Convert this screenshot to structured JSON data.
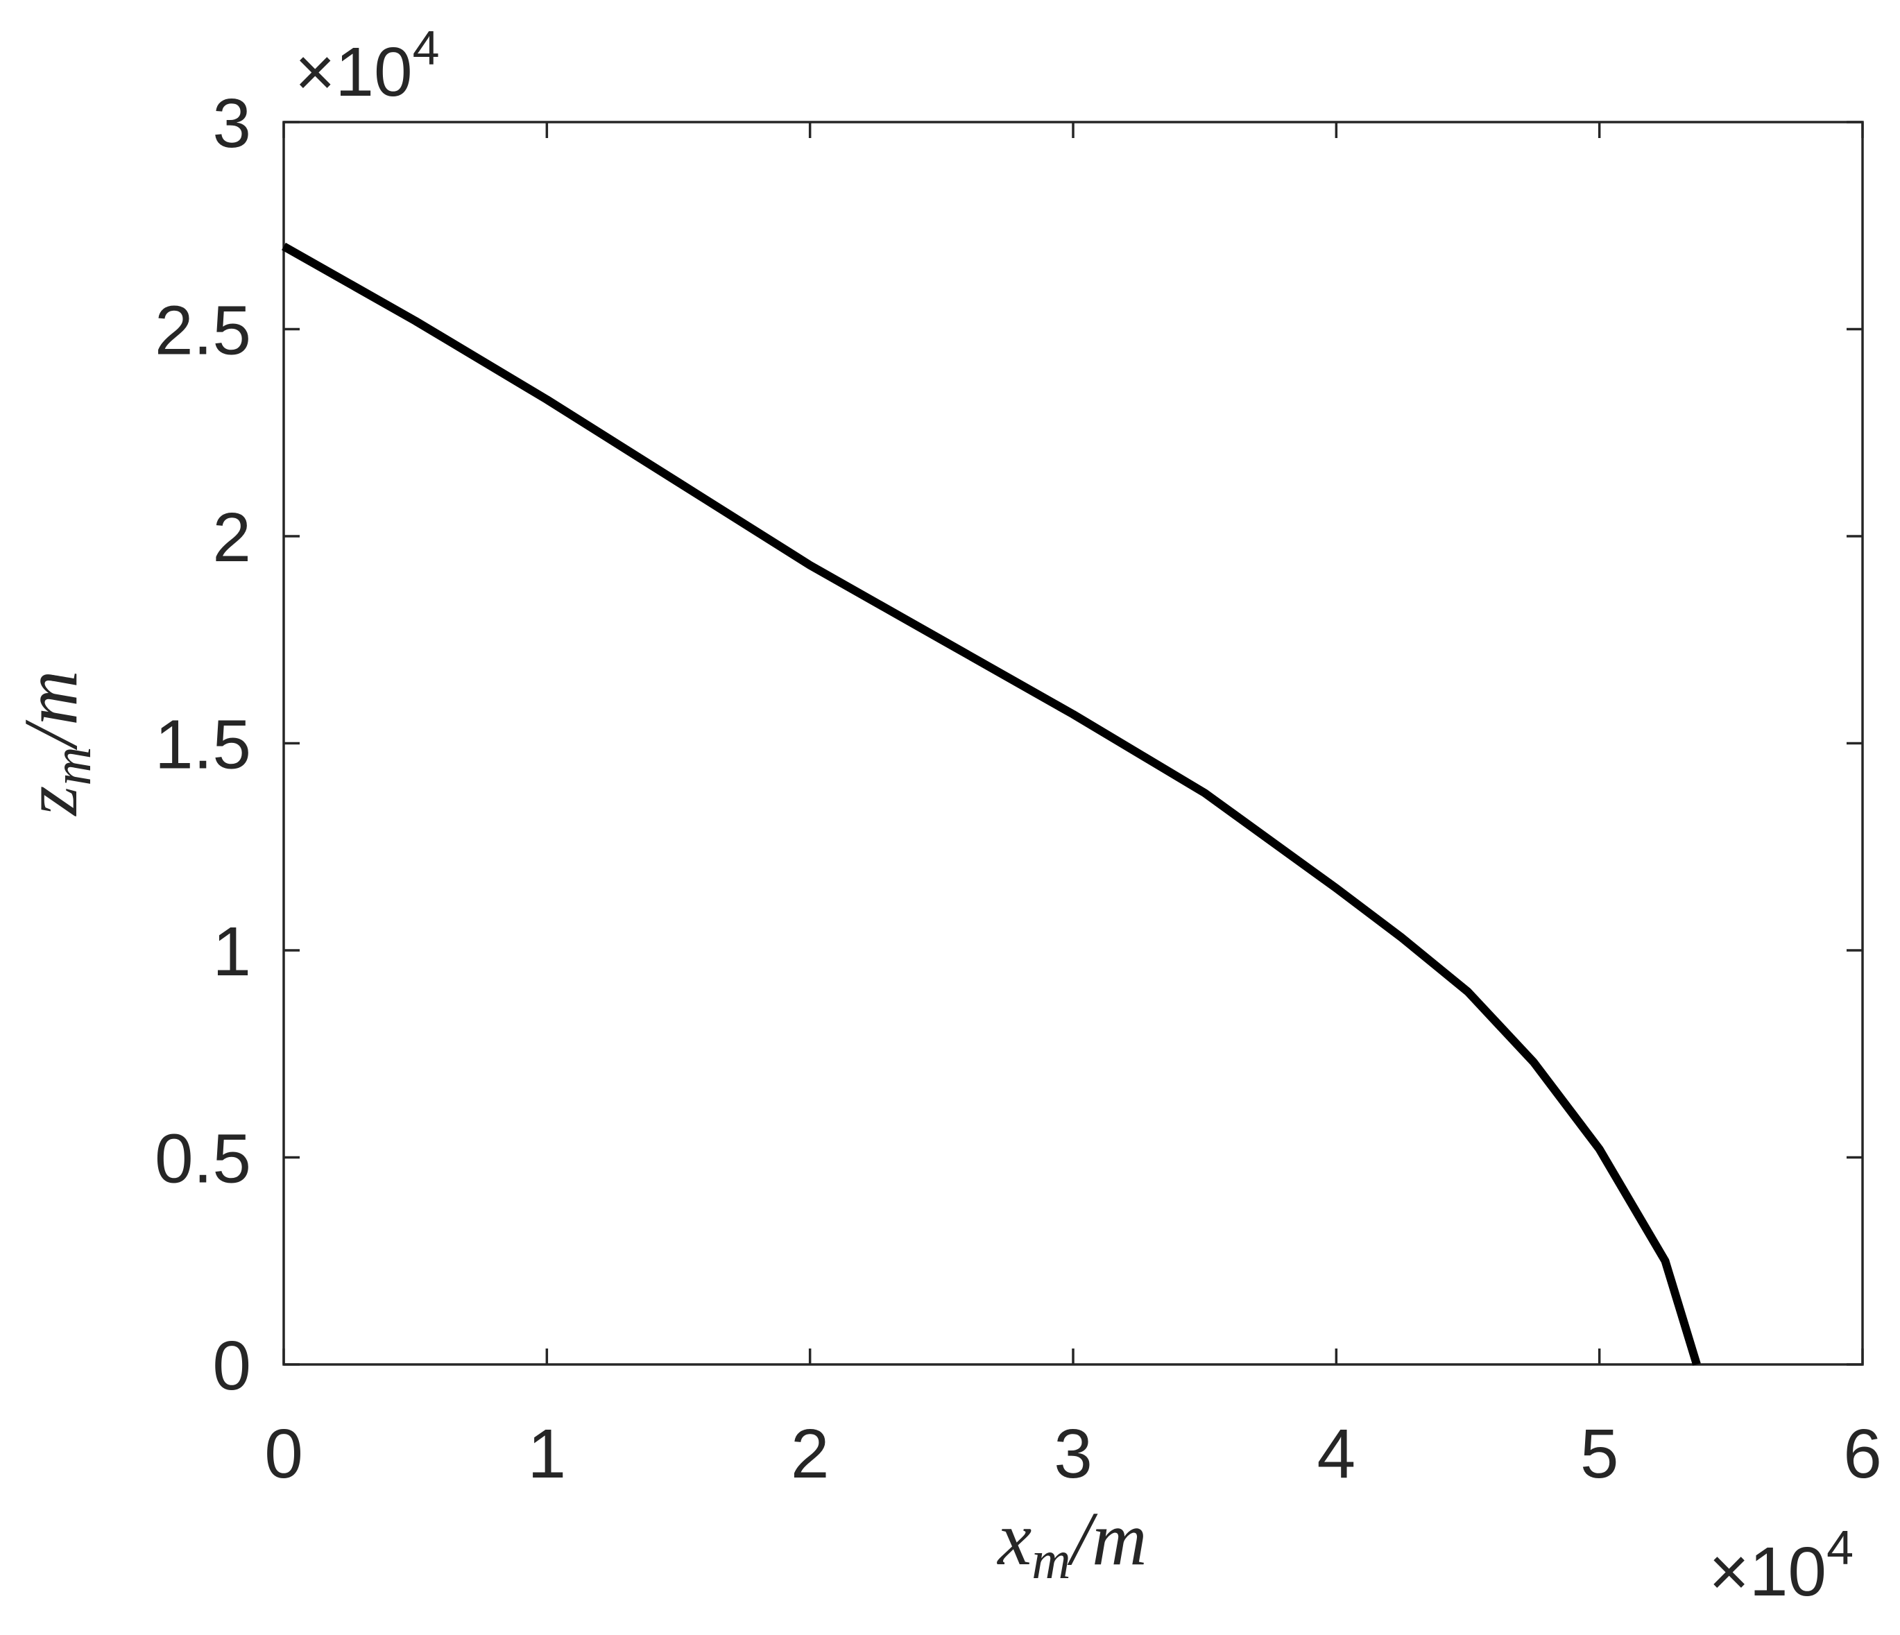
{
  "chart_data": {
    "type": "line",
    "xlabel": {
      "main": "x",
      "sub": "m",
      "rest": "/m"
    },
    "ylabel": {
      "main": "z",
      "sub": "m",
      "rest": "/m"
    },
    "x_multiplier": {
      "base": "×10",
      "exponent": "4"
    },
    "y_multiplier": {
      "base": "×10",
      "exponent": "4"
    },
    "x": [
      0,
      0.5,
      1,
      1.5,
      2,
      2.5,
      3,
      3.5,
      4,
      4.25,
      4.5,
      4.75,
      5,
      5.25,
      5.37
    ],
    "series": [
      {
        "name": "z_m",
        "color": "#000000",
        "values": [
          2.7,
          2.52,
          2.33,
          2.13,
          1.93,
          1.75,
          1.57,
          1.38,
          1.15,
          1.03,
          0.9,
          0.73,
          0.52,
          0.25,
          0
        ]
      }
    ],
    "xlim": [
      0,
      6
    ],
    "xticks": [
      0,
      1,
      2,
      3,
      4,
      5,
      6
    ],
    "ylim": [
      0,
      3
    ],
    "yticks": [
      0,
      0.5,
      1,
      1.5,
      2,
      2.5,
      3
    ],
    "grid": false
  }
}
